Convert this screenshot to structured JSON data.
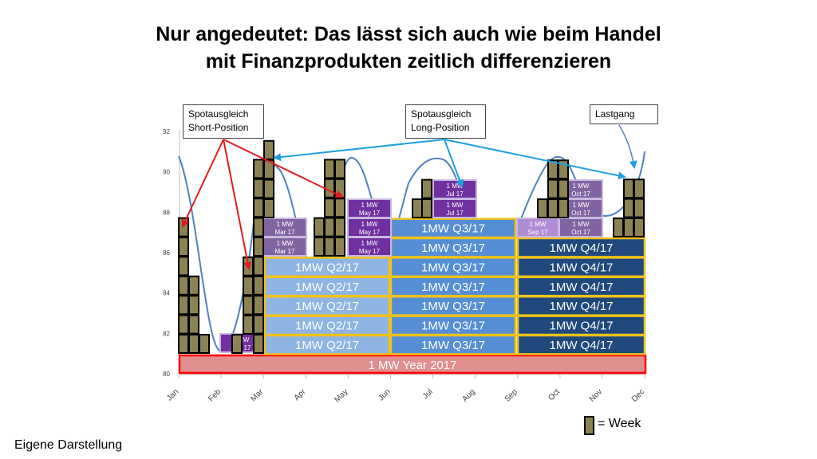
{
  "title": {
    "line1": "Nur angedeutet: Das lässt sich auch wie beim Handel",
    "line2": "mit Finanzprodukten zeitlich differenzieren"
  },
  "callouts": {
    "short": {
      "line1": "Spotausgleich",
      "line2": "Short-Position"
    },
    "long": {
      "line1": "Spotausgleich",
      "line2": "Long-Position"
    },
    "lastgang": {
      "line1": "Lastgang"
    }
  },
  "legend_label": "= Week",
  "footer": "Eigene Darstellung",
  "colors": {
    "year_fill": "#e08e8e",
    "year_border": "#ff0000",
    "q2_fill": "#8eb4e3",
    "q3_fill": "#558ed5",
    "q4_fill": "#1f497d",
    "quarter_border": "#f2c21a",
    "month_mar": "#8064a2",
    "month_may": "#7030a0",
    "month_jul": "#7030a0",
    "month_feb": "#7030a0",
    "month_sep": "#b08cd4",
    "month_oct": "#8064a2",
    "month_border": "#c9b7e0",
    "week_fill": "#8c8355",
    "curve": "#4f81bd",
    "arrow_short": "#e31a1c",
    "arrow_long": "#1ba1e2"
  },
  "chart_data": {
    "type": "diagram",
    "y_ticks": [
      "80",
      "82",
      "84",
      "86",
      "88",
      "90",
      "92"
    ],
    "ylim": [
      80,
      92
    ],
    "x_ticks": [
      "Jan",
      "Feb",
      "Mar",
      "Apr",
      "May",
      "Jun",
      "Jul",
      "Aug",
      "Sep",
      "Oct",
      "Nov",
      "Dec"
    ],
    "year_block": {
      "label": "1 MW Year 2017",
      "from": 0,
      "to": 11
    },
    "quarters": [
      {
        "label": "1MW Q2/17",
        "quarter": "Q2",
        "count": 5
      },
      {
        "label": "1MW Q3/17",
        "quarter": "Q3",
        "count": 7
      },
      {
        "label": "1MW Q4/17",
        "quarter": "Q4",
        "count": 6
      }
    ],
    "months": [
      {
        "label": "1 MW Feb 17",
        "month": "Feb",
        "count": 1
      },
      {
        "label": "1 MW Mar 17",
        "month": "Mar",
        "count": 2
      },
      {
        "label": "1 MW May 17",
        "month": "May",
        "count": 3
      },
      {
        "label": "1 MW Jul 17",
        "month": "Jul",
        "count": 2
      },
      {
        "label": "1 MW Sep 17",
        "month": "Sep",
        "count": 1
      },
      {
        "label": "1 MW Oct 17",
        "month": "Oct",
        "count": 3
      }
    ],
    "week_stacks": [
      {
        "month": "Jan",
        "weeks": 7
      },
      {
        "month": "Jan",
        "weeks": 4
      },
      {
        "month": "Jan",
        "weeks": 1
      },
      {
        "month": "Feb",
        "weeks": 1
      },
      {
        "month": "Mar",
        "weeks": 4
      },
      {
        "month": "Mar",
        "weeks": 10
      },
      {
        "month": "Mar",
        "weeks": 4
      },
      {
        "month": "Apr",
        "weeks": 2
      },
      {
        "month": "Apr",
        "weeks": 5
      },
      {
        "month": "Apr",
        "weeks": 5
      },
      {
        "month": "Jun",
        "weeks": 1
      },
      {
        "month": "Jul",
        "weeks": 2
      },
      {
        "month": "Oct",
        "weeks": 1
      },
      {
        "month": "Oct",
        "weeks": 3
      },
      {
        "month": "Oct",
        "weeks": 3
      },
      {
        "month": "Dec",
        "weeks": 1
      },
      {
        "month": "Dec",
        "weeks": 3
      },
      {
        "month": "Dec",
        "weeks": 3
      }
    ]
  }
}
